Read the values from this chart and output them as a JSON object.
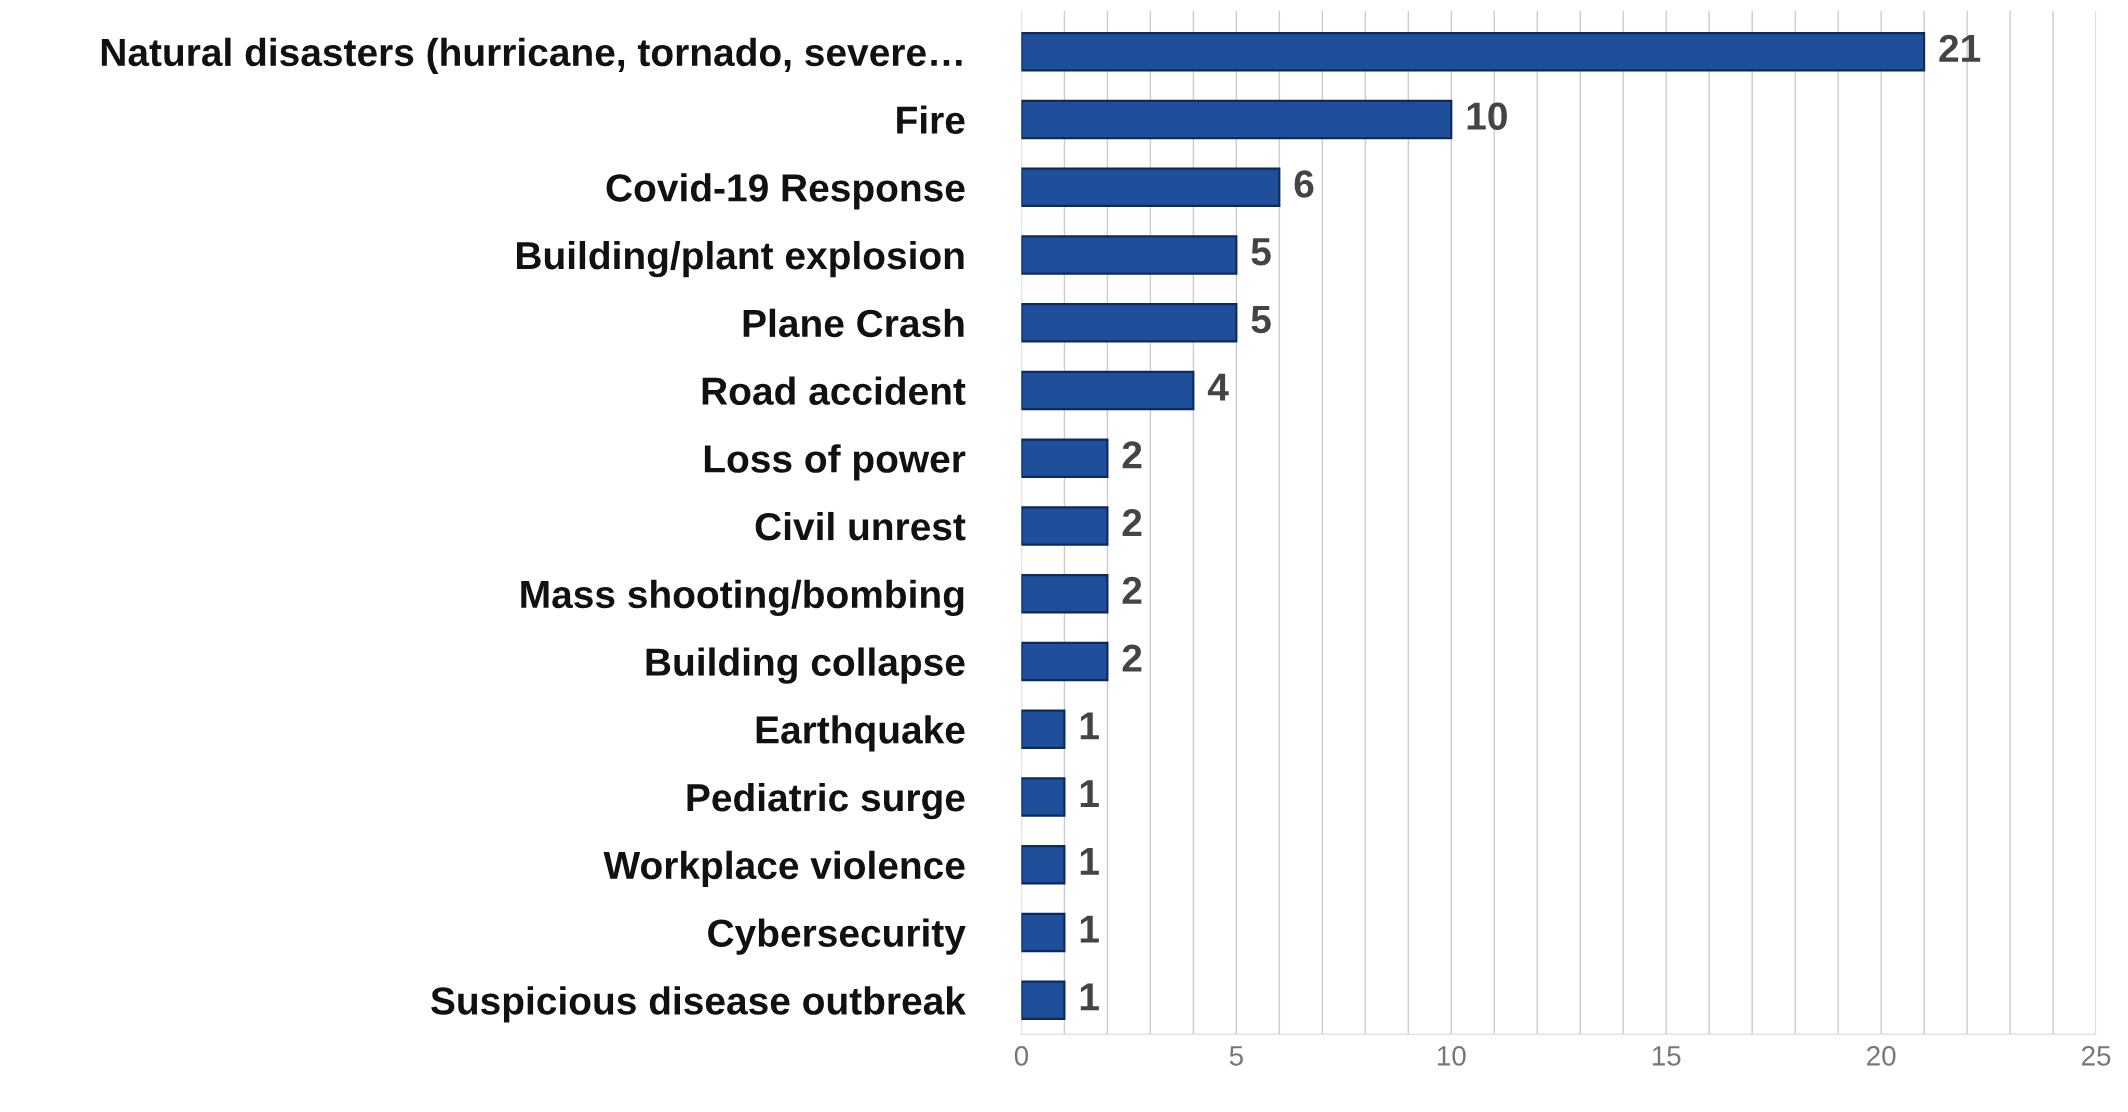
{
  "chart_data": {
    "type": "bar",
    "orientation": "horizontal",
    "categories": [
      "Natural disasters (hurricane, tornado, severe…",
      "Fire",
      "Covid-19 Response",
      "Building/plant explosion",
      "Plane Crash",
      "Road accident",
      "Loss of power",
      "Civil unrest",
      "Mass shooting/bombing",
      "Building collapse",
      "Earthquake",
      "Pediatric surge",
      "Workplace violence",
      "Cybersecurity",
      "Suspicious disease outbreak"
    ],
    "values": [
      21,
      10,
      6,
      5,
      5,
      4,
      2,
      2,
      2,
      2,
      1,
      1,
      1,
      1,
      1
    ],
    "color": "#1f4e9a",
    "data_labels": true,
    "xlim": [
      0,
      25
    ],
    "xticks": [
      0,
      {
        "value": 1,
        "label": null
      },
      {
        "value": 2,
        "label": null
      },
      {
        "value": 3,
        "label": null
      },
      {
        "value": 4,
        "label": null
      },
      5,
      {
        "value": 6,
        "label": null
      },
      {
        "value": 7,
        "label": null
      },
      {
        "value": 8,
        "label": null
      },
      {
        "value": 9,
        "label": null
      },
      10,
      {
        "value": 11,
        "label": null
      },
      {
        "value": 12,
        "label": null
      },
      {
        "value": 13,
        "label": null
      },
      {
        "value": 14,
        "label": null
      },
      15,
      {
        "value": 16,
        "label": null
      },
      {
        "value": 17,
        "label": null
      },
      {
        "value": 18,
        "label": null
      },
      {
        "value": 19,
        "label": null
      },
      20,
      {
        "value": 21,
        "label": null
      },
      {
        "value": 22,
        "label": null
      },
      {
        "value": 23,
        "label": null
      },
      {
        "value": 24,
        "label": null
      },
      25
    ],
    "grid": "x"
  }
}
